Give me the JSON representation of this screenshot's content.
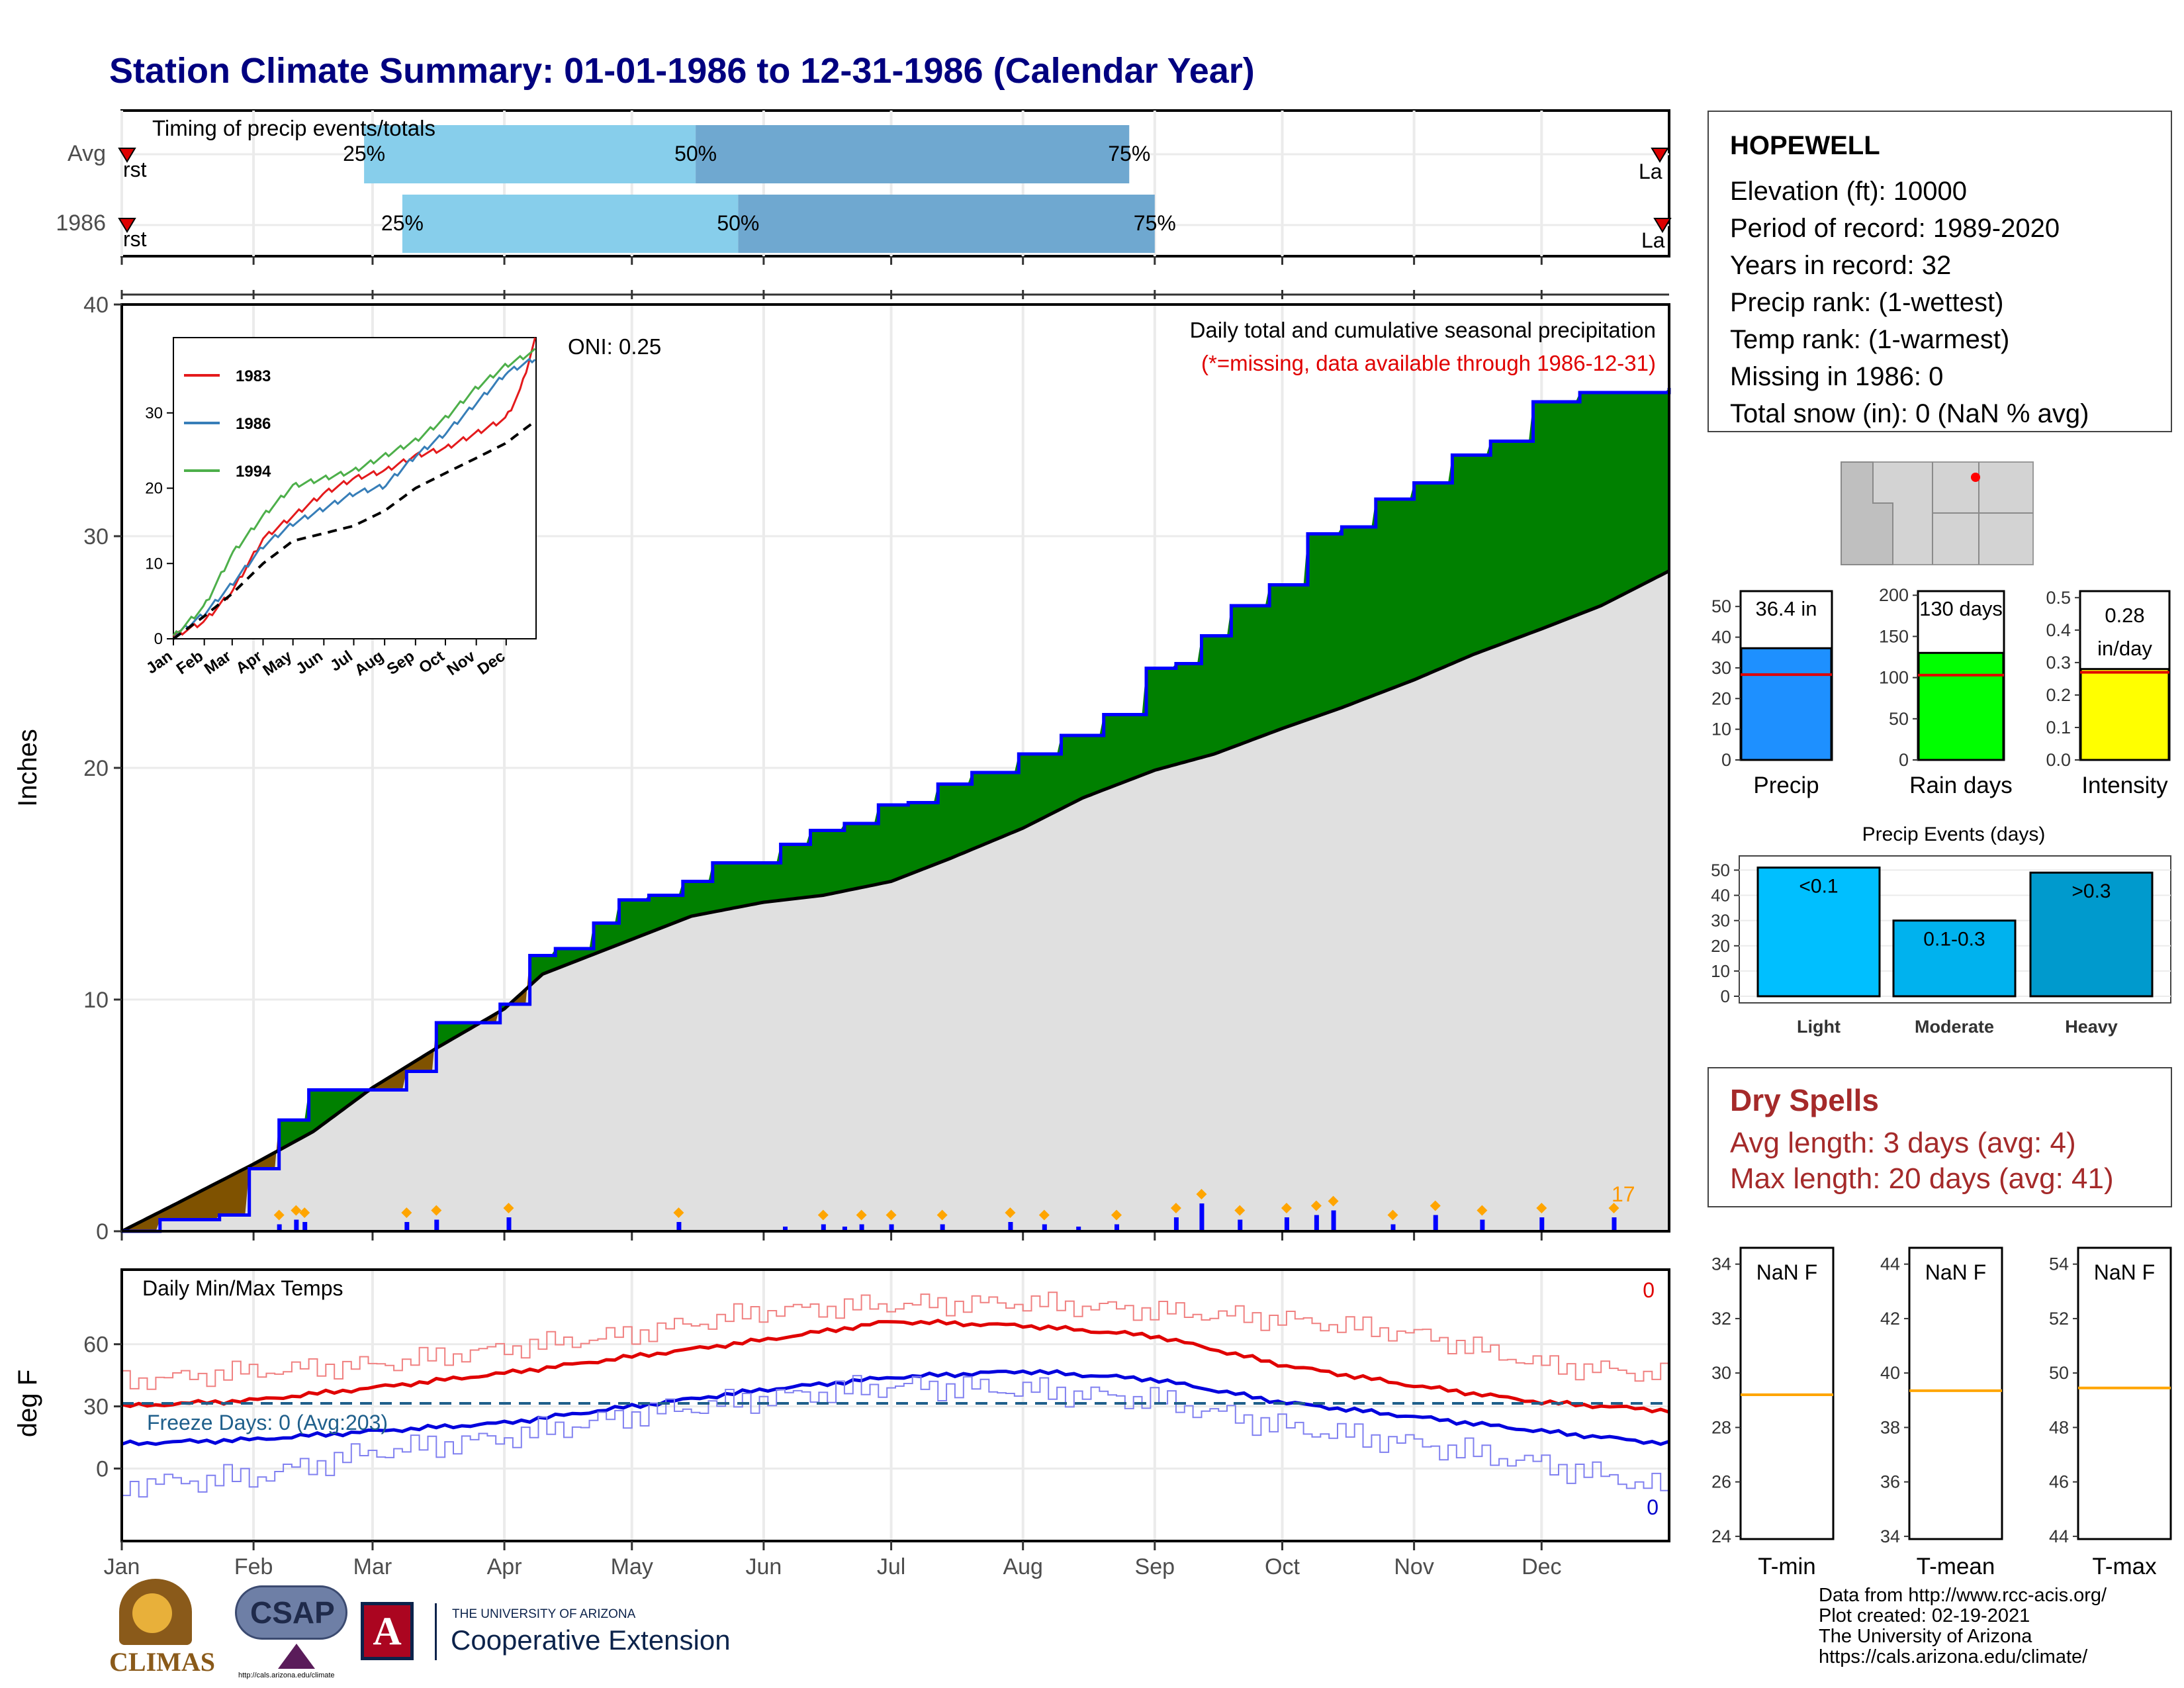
{
  "title": "Station Climate Summary: 01-01-1986 to 12-31-1986 (Calendar Year)",
  "timing": {
    "title": "Timing of precip events/totals",
    "rows": [
      {
        "label": "Avg",
        "first": "rst",
        "last": "La",
        "p25": "25%",
        "p50": "50%",
        "p75": "75%",
        "p25_doy": 58,
        "p50_doy": 136,
        "p75_doy": 238
      },
      {
        "label": "1986",
        "first": "rst",
        "last": "La",
        "p25": "25%",
        "p50": "50%",
        "p75": "75%",
        "p25_doy": 67,
        "p50_doy": 146,
        "p75_doy": 244
      }
    ]
  },
  "station": {
    "name": "HOPEWELL",
    "lines": [
      "Elevation (ft): 10000",
      "Period of record: 1989-2020",
      "Years in record: 32",
      "Precip rank:  (1-wettest)",
      "Temp rank:  (1-warmest)",
      "Missing in 1986: 0",
      "Total snow (in): 0 (NaN % avg)"
    ]
  },
  "main_chart": {
    "ylabel": "Inches",
    "y_ticks": [
      "0",
      "10",
      "20",
      "30",
      "40"
    ],
    "subtitle": "Daily total and cumulative seasonal precipitation",
    "missing_note": "(*=missing, data available through 1986-12-31)",
    "oni": "ONI: 0.25",
    "corner_count": "17",
    "colors": {
      "above": "#008000",
      "below": "#7f5200",
      "cumulative": "#0000ff",
      "normal_fill": "#e0e0e0"
    }
  },
  "inset": {
    "legend": [
      "1983",
      "1986",
      "1994"
    ],
    "colors": [
      "#e41a1c",
      "#377eb8",
      "#4daf4a"
    ],
    "y_ticks": [
      "0",
      "10",
      "20",
      "30"
    ],
    "x_ticks": [
      "Jan",
      "Feb",
      "Mar",
      "Apr",
      "May",
      "Jun",
      "Jul",
      "Aug",
      "Sep",
      "Oct",
      "Nov",
      "Dec"
    ]
  },
  "temp_chart": {
    "ylabel": "deg F",
    "title": "Daily Min/Max Temps",
    "freeze": "Freeze Days: 0 (Avg:203)",
    "red_count": "0",
    "blue_count": "0",
    "y_ticks": [
      "0",
      "30",
      "60"
    ],
    "x_ticks": [
      "Jan",
      "Feb",
      "Mar",
      "Apr",
      "May",
      "Jun",
      "Jul",
      "Aug",
      "Sep",
      "Oct",
      "Nov",
      "Dec"
    ]
  },
  "summary_bars": [
    {
      "name": "Precip",
      "label": "36.4 in",
      "value": 36.4,
      "avg": 27.8,
      "ymax": 55,
      "ticks": [
        "0",
        "10",
        "20",
        "30",
        "40",
        "50"
      ],
      "tick_values": [
        0,
        10,
        20,
        30,
        40,
        50
      ],
      "color": "#1e90ff"
    },
    {
      "name": "Rain days",
      "label": "130 days",
      "value": 130,
      "avg": 103,
      "ymax": 205,
      "ticks": [
        "0",
        "50",
        "100",
        "150",
        "200"
      ],
      "tick_values": [
        0,
        50,
        100,
        150,
        200
      ],
      "color": "#00ff00"
    },
    {
      "name": "Intensity",
      "label1": "0.28",
      "label2": "in/day",
      "value": 0.28,
      "avg": 0.27,
      "ymax": 0.52,
      "ticks": [
        "0.0",
        "0.1",
        "0.2",
        "0.3",
        "0.4",
        "0.5"
      ],
      "tick_values": [
        0,
        0.1,
        0.2,
        0.3,
        0.4,
        0.5
      ],
      "color": "#ffff00"
    }
  ],
  "events": {
    "title": "Precip Events (days)",
    "categories": [
      "Light",
      "Moderate",
      "Heavy"
    ],
    "labels": [
      "<0.1",
      "0.1-0.3",
      ">0.3"
    ],
    "values": [
      51,
      30,
      49
    ],
    "colors": [
      "#00bfff",
      "#00b2ee",
      "#009acd"
    ],
    "ticks": [
      "0",
      "10",
      "20",
      "30",
      "40",
      "50"
    ],
    "tick_values": [
      0,
      10,
      20,
      30,
      40,
      50
    ]
  },
  "dry_spells": {
    "title": "Dry Spells",
    "avg": "Avg length: 3 days (avg: 4)",
    "max": "Max length: 20 days (avg: 41)"
  },
  "temp_panels": [
    {
      "name": "T-min",
      "label": "NaN F",
      "ticks": [
        "24",
        "26",
        "28",
        "30",
        "32",
        "34"
      ],
      "tick_values": [
        24,
        26,
        28,
        30,
        32,
        34
      ],
      "ymin": 23.9,
      "ymax": 34.6,
      "line": 29.2
    },
    {
      "name": "T-mean",
      "label": "NaN F",
      "ticks": [
        "34",
        "36",
        "38",
        "40",
        "42",
        "44"
      ],
      "tick_values": [
        34,
        36,
        38,
        40,
        42,
        44
      ],
      "ymin": 33.9,
      "ymax": 44.6,
      "line": 39.35
    },
    {
      "name": "T-max",
      "label": "NaN F",
      "ticks": [
        "44",
        "46",
        "48",
        "50",
        "52",
        "54"
      ],
      "tick_values": [
        44,
        46,
        48,
        50,
        52,
        54
      ],
      "ymin": 43.9,
      "ymax": 54.6,
      "line": 49.45
    }
  ],
  "logos": {
    "climas": "CLIMAS",
    "csap": "CSAP",
    "csap_url": "http://cals.arizona.edu/climate",
    "ua_top": "THE UNIVERSITY OF ARIZONA",
    "ua_bottom": "Cooperative Extension"
  },
  "credits": [
    "Data from http://www.rcc-acis.org/",
    "Plot created: 02-19-2021",
    "The University of Arizona",
    "https://cals.arizona.edu/climate/"
  ],
  "chart_data": [
    {
      "type": "area",
      "title": "Daily total and cumulative seasonal precipitation",
      "ylabel": "Inches",
      "ylim": [
        0,
        40
      ],
      "x_unit": "day of year 1986",
      "series": [
        {
          "name": "1986",
          "kind": "cumulative",
          "x": [
            1,
            10,
            24,
            31,
            38,
            45,
            52,
            60,
            68,
            75,
            83,
            90,
            97,
            103,
            112,
            118,
            125,
            133,
            140,
            147,
            156,
            163,
            171,
            179,
            186,
            193,
            201,
            212,
            222,
            232,
            242,
            249,
            255,
            262,
            271,
            280,
            288,
            296,
            305,
            314,
            323,
            333,
            344,
            353,
            365
          ],
          "y": [
            0,
            0.5,
            0.7,
            2.7,
            4.8,
            6.1,
            6.1,
            6.1,
            6.9,
            9.0,
            9.0,
            9.8,
            11.9,
            12.2,
            13.3,
            14.3,
            14.5,
            15.1,
            15.9,
            15.9,
            16.7,
            17.3,
            17.6,
            18.4,
            18.5,
            19.3,
            19.8,
            20.6,
            21.4,
            22.3,
            24.3,
            24.5,
            25.7,
            27.0,
            27.9,
            30.1,
            30.4,
            31.6,
            32.3,
            33.5,
            34.1,
            35.8,
            36.2,
            36.2,
            36.4
          ]
        },
        {
          "name": "Normal",
          "kind": "cumulative average",
          "x": [
            1,
            15,
            32,
            46,
            60,
            75,
            91,
            100,
            121,
            135,
            152,
            166,
            182,
            196,
            213,
            227,
            244,
            258,
            274,
            288,
            305,
            319,
            335,
            349,
            365
          ],
          "y": [
            0,
            1.3,
            2.9,
            4.3,
            6.2,
            7.9,
            9.6,
            11.1,
            12.6,
            13.6,
            14.2,
            14.5,
            15.1,
            16.1,
            17.4,
            18.7,
            19.9,
            20.6,
            21.7,
            22.6,
            23.8,
            24.9,
            26.0,
            27.0,
            28.5
          ]
        }
      ]
    },
    {
      "type": "bar",
      "title": "",
      "ylabel": "Inches",
      "x_unit": "day of year 1986",
      "x": [
        38,
        42,
        44,
        68,
        75,
        92,
        132,
        157,
        166,
        171,
        175,
        182,
        194,
        210,
        218,
        226,
        235,
        249,
        255,
        264,
        275,
        282,
        286,
        300,
        310,
        321,
        335,
        352
      ],
      "values": [
        0.3,
        0.5,
        0.4,
        0.4,
        0.5,
        0.6,
        0.4,
        0.2,
        0.3,
        0.2,
        0.3,
        0.3,
        0.3,
        0.4,
        0.3,
        0.2,
        0.3,
        0.6,
        1.2,
        0.5,
        0.6,
        0.7,
        0.9,
        0.3,
        0.7,
        0.5,
        0.6,
        0.6
      ]
    },
    {
      "type": "line",
      "title": "",
      "xlabel": "",
      "ylabel": "",
      "ylim": [
        0,
        40
      ],
      "x_unit": "day of year",
      "series": [
        {
          "name": "1983",
          "x": [
            1,
            32,
            60,
            91,
            121,
            152,
            182,
            213,
            244,
            274,
            305,
            335,
            350,
            365
          ],
          "y": [
            0,
            2,
            6,
            13,
            16,
            19,
            21,
            22,
            24,
            25,
            27,
            29,
            33,
            40
          ]
        },
        {
          "name": "1986",
          "x": [
            1,
            32,
            60,
            91,
            121,
            152,
            182,
            213,
            244,
            274,
            305,
            335,
            350,
            365
          ],
          "y": [
            0,
            3,
            7,
            12,
            15,
            17,
            19,
            20,
            24,
            27,
            31,
            35,
            36,
            37
          ]
        },
        {
          "name": "1994",
          "x": [
            1,
            32,
            60,
            91,
            121,
            152,
            182,
            213,
            244,
            274,
            305,
            335,
            350,
            365
          ],
          "y": [
            0,
            4,
            11,
            16,
            20,
            21,
            22,
            24,
            26,
            29,
            33,
            36,
            37,
            38
          ]
        },
        {
          "name": "",
          "kind": "average",
          "x": [
            1,
            32,
            60,
            91,
            121,
            152,
            182,
            213,
            244,
            274,
            305,
            335,
            365
          ],
          "y": [
            0,
            3,
            6,
            10,
            13,
            14,
            15,
            17,
            20,
            22,
            24,
            26,
            29
          ]
        }
      ]
    },
    {
      "type": "line",
      "title": "Daily Min/Max Temps",
      "ylabel": "deg F",
      "x_unit": "day of year",
      "series": [
        {
          "name": "Tmax normal",
          "x": [
            1,
            32,
            60,
            91,
            121,
            152,
            182,
            213,
            244,
            274,
            305,
            335,
            365
          ],
          "y": [
            30,
            33,
            39,
            46,
            54,
            62,
            71,
            69,
            64,
            50,
            40,
            32,
            28
          ]
        },
        {
          "name": "Tmin normal",
          "x": [
            1,
            32,
            60,
            91,
            121,
            152,
            182,
            213,
            244,
            274,
            305,
            335,
            365
          ],
          "y": [
            12,
            14,
            18,
            22,
            30,
            38,
            44,
            47,
            43,
            32,
            25,
            18,
            12
          ]
        },
        {
          "name": "Tmax 1986",
          "x": [
            1,
            32,
            60,
            91,
            121,
            152,
            182,
            213,
            244,
            274,
            305,
            335,
            365
          ],
          "y": [
            42,
            47,
            50,
            58,
            65,
            76,
            79,
            80,
            76,
            72,
            65,
            50,
            45
          ]
        },
        {
          "name": "Tmin 1986",
          "x": [
            1,
            32,
            60,
            91,
            121,
            152,
            182,
            213,
            244,
            274,
            305,
            335,
            365
          ],
          "y": [
            -8,
            -4,
            8,
            15,
            26,
            34,
            40,
            38,
            33,
            20,
            12,
            2,
            -10
          ]
        }
      ]
    }
  ]
}
